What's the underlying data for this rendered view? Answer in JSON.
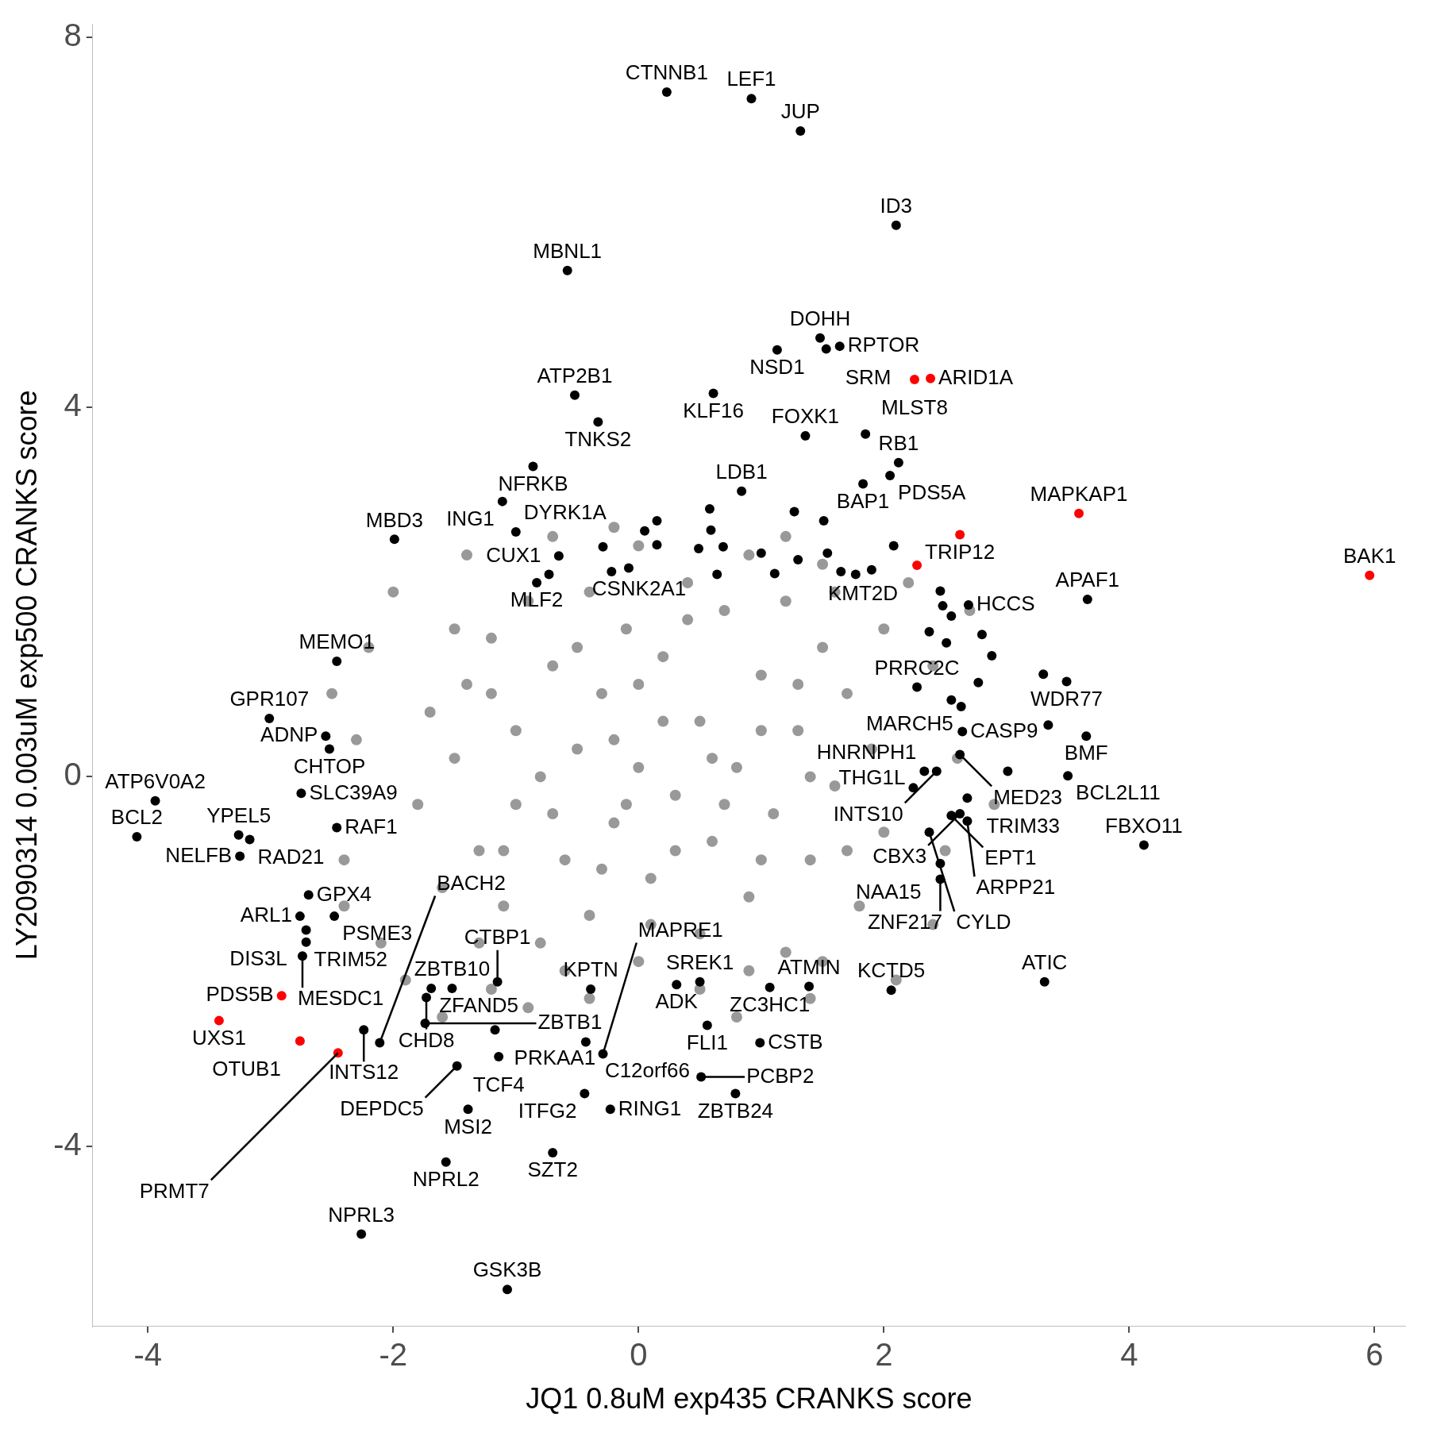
{
  "chart_data": {
    "type": "scatter",
    "xlabel": "JQ1 0.8uM exp435 CRANKS score",
    "ylabel": "LY2090314 0.003uM exp500 CRANKS score",
    "xlim": [
      -4.45,
      6.25
    ],
    "ylim": [
      -5.95,
      8.15
    ],
    "xticks": [
      -4,
      -2,
      0,
      2,
      4,
      6
    ],
    "yticks": [
      -4,
      0,
      4,
      8
    ],
    "grid": false,
    "legend": false,
    "marker": "circle",
    "series": [
      {
        "color": "#999999",
        "x": [
          -1.5,
          -1.4,
          -1.3,
          -1.2,
          -1.1,
          -1.0,
          -1.0,
          -0.9,
          -0.8,
          -0.7,
          -0.6,
          -0.5,
          -0.4,
          -0.4,
          -0.3,
          -0.2,
          -0.1,
          0,
          0,
          0.1,
          0.2,
          0.3,
          0.4,
          0.5,
          0.5,
          0.6,
          0.7,
          0.8,
          0.9,
          1.0,
          1.1,
          1.2,
          1.2,
          1.3,
          1.4,
          1.5,
          1.6,
          1.7,
          1.8,
          1.9,
          2.0,
          2.0,
          1.6,
          -1.6,
          -1.7,
          -1.8,
          -1.5,
          -1.3,
          0.9,
          -0.6,
          1.5,
          -2.3,
          -2.4,
          -2.2,
          -2.1,
          -2.0,
          -1.4,
          -0.7,
          0.0,
          0.9,
          1.5,
          2.2,
          2.4,
          2.6,
          2.5,
          2.4,
          2.1,
          1.4,
          0.5,
          -0.4,
          -1.2,
          -1.9,
          -2.4,
          -2.5,
          2.7,
          2.9,
          -1.6,
          -0.9,
          0.8,
          -0.2,
          1.2,
          -0.8,
          -0.3,
          0.2,
          0.7,
          1.0,
          -0.5,
          0.4,
          -1.1,
          1.3,
          0.1,
          -0.2,
          0.6,
          -1.2,
          1.7,
          -0.1,
          0.3,
          1.0,
          -0.7,
          0.0,
          1.4
        ],
        "values": [
          0.2,
          1.0,
          -0.8,
          1.5,
          -1.4,
          0.5,
          -0.3,
          1.9,
          -1.8,
          1.2,
          -0.9,
          0.3,
          2.0,
          -1.5,
          0.9,
          -0.5,
          1.6,
          -2.0,
          0.1,
          -1.1,
          1.3,
          -0.2,
          2.1,
          -1.7,
          0.6,
          -0.7,
          1.8,
          0.1,
          -1.3,
          1.1,
          -0.4,
          1.9,
          -1.9,
          0.5,
          -0.9,
          1.4,
          -0.1,
          0.9,
          -1.4,
          0.3,
          -0.6,
          1.6,
          2.0,
          -1.2,
          0.7,
          -0.3,
          1.6,
          -1.8,
          -2.1,
          -2.1,
          -2.0,
          0.4,
          -0.9,
          1.4,
          -1.8,
          2.0,
          2.4,
          2.6,
          2.5,
          2.4,
          2.3,
          2.1,
          1.2,
          0.2,
          -0.8,
          -1.6,
          -2.2,
          -2.4,
          -2.3,
          -2.4,
          -2.3,
          -2.2,
          -1.4,
          0.9,
          1.8,
          -0.3,
          -2.6,
          -2.5,
          -2.6,
          2.7,
          2.6,
          0.0,
          -1.0,
          0.6,
          -0.3,
          -0.9,
          1.4,
          1.7,
          -0.8,
          1.0,
          -1.6,
          0.4,
          0.2,
          0.9,
          -0.8,
          -0.3,
          -0.8,
          0.5,
          -0.4,
          1.0,
          0.0
        ]
      },
      {
        "color": "#000000",
        "x": [
          0.23,
          0.92,
          1.32,
          2.1,
          -0.58,
          1.48,
          1.13,
          1.64,
          1.53,
          0.61,
          -0.52,
          -0.33,
          1.36,
          2.12,
          2.05,
          1.83,
          -0.86,
          -1.11,
          -1.0,
          -0.73,
          -0.83,
          -0.22,
          0.84,
          -1.99,
          2.69,
          3.66,
          -2.46,
          3.49,
          -3.01,
          2.27,
          2.63,
          -2.55,
          2.64,
          2.33,
          2.62,
          3.65,
          -2.52,
          -3.26,
          -3.94,
          -2.75,
          2.43,
          3.5,
          -3.17,
          -2.46,
          2.68,
          2.24,
          2.55,
          2.62,
          2.68,
          4.12,
          2.37,
          -4.09,
          -3.25,
          -2.69,
          -2.48,
          -2.76,
          2.46,
          2.46,
          -0.39,
          -1.52,
          -1.69,
          0.5,
          -2.71,
          -2.71,
          -2.74,
          -1.15,
          0.31,
          1.07,
          1.39,
          2.06,
          3.31,
          -2.24,
          0.56,
          -1.73,
          -2.11,
          -1.17,
          -1.74,
          -0.43,
          -0.29,
          -1.14,
          -1.48,
          0.99,
          0.79,
          0.51,
          -0.44,
          -0.23,
          -1.39,
          -1.57,
          -0.7,
          -2.26,
          -1.07,
          1.85,
          0.15,
          0.58,
          1.27,
          1.51,
          2.08,
          0.05,
          -0.29,
          0.15,
          0.59,
          0.49,
          0.69,
          1.0,
          1.3,
          1.54,
          1.65,
          1.77,
          1.9,
          1.11,
          0.64,
          -0.08,
          -0.65,
          2.46,
          2.48,
          2.55,
          2.37,
          2.8,
          2.88,
          2.51,
          3.3,
          2.77,
          2.55,
          3.01,
          3.34
        ],
        "values": [
          7.41,
          7.34,
          6.99,
          5.97,
          5.48,
          4.75,
          4.62,
          4.66,
          4.63,
          4.15,
          4.13,
          3.84,
          3.69,
          3.4,
          3.26,
          3.17,
          3.36,
          2.98,
          2.65,
          2.19,
          2.1,
          2.22,
          3.09,
          2.57,
          1.86,
          1.92,
          1.25,
          1.03,
          0.63,
          0.97,
          0.76,
          0.44,
          0.49,
          0.06,
          0.24,
          0.44,
          0.3,
          -0.63,
          -0.26,
          -0.18,
          0.06,
          0.01,
          -0.68,
          -0.55,
          -0.23,
          -0.12,
          -0.42,
          -0.4,
          -0.48,
          -0.74,
          -0.6,
          -0.65,
          -0.86,
          -1.28,
          -1.51,
          -1.51,
          -0.94,
          -1.11,
          -2.3,
          -2.29,
          -2.29,
          -2.22,
          -1.66,
          -1.79,
          -1.94,
          -2.22,
          -2.25,
          -2.28,
          -2.27,
          -2.31,
          -2.22,
          -2.74,
          -2.69,
          -2.39,
          -2.88,
          -2.74,
          -2.67,
          -2.87,
          -3.0,
          -3.03,
          -3.13,
          -2.88,
          -3.43,
          -3.25,
          -3.43,
          -3.6,
          -3.6,
          -4.17,
          -4.07,
          -4.95,
          -5.55,
          3.71,
          2.77,
          2.9,
          2.87,
          2.77,
          2.5,
          2.66,
          2.49,
          2.51,
          2.67,
          2.47,
          2.49,
          2.42,
          2.35,
          2.42,
          2.22,
          2.19,
          2.24,
          2.2,
          2.19,
          2.26,
          2.39,
          2.01,
          1.85,
          1.74,
          1.57,
          1.54,
          1.31,
          1.45,
          1.11,
          1.02,
          0.83,
          0.06,
          0.56
        ]
      },
      {
        "color": "#ff0000",
        "x": [
          2.38,
          2.25,
          2.62,
          3.59,
          2.27,
          5.96,
          -2.91,
          -3.42,
          -2.76,
          -2.45
        ],
        "values": [
          4.31,
          4.3,
          2.62,
          2.85,
          2.29,
          2.18,
          -2.37,
          -2.64,
          -2.86,
          -2.99
        ]
      }
    ],
    "annotations": [
      {
        "text": "CTNNB1",
        "x": 0.23,
        "y": 7.41
      },
      {
        "text": "LEF1",
        "x": 0.92,
        "y": 7.34
      },
      {
        "text": "JUP",
        "x": 1.32,
        "y": 6.99
      },
      {
        "text": "ID3",
        "x": 2.1,
        "y": 5.97
      },
      {
        "text": "MBNL1",
        "x": -0.58,
        "y": 5.48
      },
      {
        "text": "DOHH",
        "x": 1.48,
        "y": 4.75
      },
      {
        "text": "NSD1",
        "x": 1.13,
        "y": 4.62
      },
      {
        "text": "RPTOR",
        "x": 1.64,
        "y": 4.66
      },
      {
        "text": "SRM",
        "x": 1.53,
        "y": 4.63
      },
      {
        "text": "ARID1A",
        "x": 2.38,
        "y": 4.31
      },
      {
        "text": "MLST8",
        "x": 2.25,
        "y": 4.3
      },
      {
        "text": "KLF16",
        "x": 0.61,
        "y": 4.15
      },
      {
        "text": "ATP2B1",
        "x": -0.52,
        "y": 4.13
      },
      {
        "text": "TNKS2",
        "x": -0.33,
        "y": 3.84
      },
      {
        "text": "FOXK1",
        "x": 1.36,
        "y": 3.69
      },
      {
        "text": "RB1",
        "x": 2.12,
        "y": 3.4
      },
      {
        "text": "PDS5A",
        "x": 2.05,
        "y": 3.26
      },
      {
        "text": "BAP1",
        "x": 1.83,
        "y": 3.17
      },
      {
        "text": "NFRKB",
        "x": -0.86,
        "y": 3.36
      },
      {
        "text": "ING1",
        "x": -1.11,
        "y": 2.98
      },
      {
        "text": "DYRK1A",
        "x": -1.0,
        "y": 2.65
      },
      {
        "text": "CUX1",
        "x": -0.73,
        "y": 2.19
      },
      {
        "text": "MLF2",
        "x": -0.83,
        "y": 2.1
      },
      {
        "text": "CSNK2A1",
        "x": -0.22,
        "y": 2.22
      },
      {
        "text": "LDB1",
        "x": 0.84,
        "y": 3.09
      },
      {
        "text": "MBD3",
        "x": -1.99,
        "y": 2.57
      },
      {
        "text": "TRIP12",
        "x": 2.62,
        "y": 2.62
      },
      {
        "text": "MAPKAP1",
        "x": 3.59,
        "y": 2.85
      },
      {
        "text": "KMT2D",
        "x": 2.27,
        "y": 2.29
      },
      {
        "text": "BAK1",
        "x": 5.96,
        "y": 2.18
      },
      {
        "text": "HCCS",
        "x": 2.69,
        "y": 1.86
      },
      {
        "text": "APAF1",
        "x": 3.66,
        "y": 1.92
      },
      {
        "text": "MEMO1",
        "x": -2.46,
        "y": 1.25
      },
      {
        "text": "WDR77",
        "x": 3.49,
        "y": 1.03
      },
      {
        "text": "GPR107",
        "x": -3.01,
        "y": 0.63
      },
      {
        "text": "PRRC2C",
        "x": 2.27,
        "y": 0.97
      },
      {
        "text": "MARCH5",
        "x": 2.63,
        "y": 0.76
      },
      {
        "text": "ADNP",
        "x": -2.55,
        "y": 0.44
      },
      {
        "text": "CASP9",
        "x": 2.64,
        "y": 0.49
      },
      {
        "text": "HNRNPH1",
        "x": 2.33,
        "y": 0.06
      },
      {
        "text": "MED23",
        "x": 2.62,
        "y": 0.24
      },
      {
        "text": "BMF",
        "x": 3.65,
        "y": 0.44
      },
      {
        "text": "CHTOP",
        "x": -2.52,
        "y": 0.3
      },
      {
        "text": "YPEL5",
        "x": -3.26,
        "y": -0.63
      },
      {
        "text": "ATP6V0A2",
        "x": -3.94,
        "y": -0.26
      },
      {
        "text": "SLC39A9",
        "x": -2.75,
        "y": -0.18
      },
      {
        "text": "INTS10",
        "x": 2.43,
        "y": 0.06
      },
      {
        "text": "BCL2L11",
        "x": 3.5,
        "y": 0.01
      },
      {
        "text": "RAD21",
        "x": -3.17,
        "y": -0.68
      },
      {
        "text": "RAF1",
        "x": -2.46,
        "y": -0.55
      },
      {
        "text": "TRIM33",
        "x": 2.68,
        "y": -0.23
      },
      {
        "text": "THG1L",
        "x": 2.24,
        "y": -0.12
      },
      {
        "text": "EPT1",
        "x": 2.55,
        "y": -0.42
      },
      {
        "text": "CBX3",
        "x": 2.62,
        "y": -0.4
      },
      {
        "text": "ARPP21",
        "x": 2.68,
        "y": -0.48
      },
      {
        "text": "FBXO11",
        "x": 4.12,
        "y": -0.74
      },
      {
        "text": "CYLD",
        "x": 2.37,
        "y": -0.6
      },
      {
        "text": "BCL2",
        "x": -4.09,
        "y": -0.65
      },
      {
        "text": "NELFB",
        "x": -3.25,
        "y": -0.86
      },
      {
        "text": "GPX4",
        "x": -2.69,
        "y": -1.28
      },
      {
        "text": "PSME3",
        "x": -2.48,
        "y": -1.51
      },
      {
        "text": "ARL1",
        "x": -2.76,
        "y": -1.51
      },
      {
        "text": "NAA15",
        "x": 2.46,
        "y": -0.94
      },
      {
        "text": "ZNF217",
        "x": 2.46,
        "y": -1.11
      },
      {
        "text": "KPTN",
        "x": -0.39,
        "y": -2.3
      },
      {
        "text": "ZBTB10",
        "x": -1.52,
        "y": -2.29
      },
      {
        "text": "ZFAND5",
        "x": -1.69,
        "y": -2.29
      },
      {
        "text": "SREK1",
        "x": 0.5,
        "y": -2.22
      },
      {
        "text": "DIS3L",
        "x": -2.71,
        "y": -1.66
      },
      {
        "text": "TRIM52",
        "x": -2.71,
        "y": -1.79
      },
      {
        "text": "MESDC1",
        "x": -2.74,
        "y": -1.94
      },
      {
        "text": "CTBP1",
        "x": -1.15,
        "y": -2.22
      },
      {
        "text": "ADK",
        "x": 0.31,
        "y": -2.25
      },
      {
        "text": "ZC3HC1",
        "x": 1.07,
        "y": -2.28
      },
      {
        "text": "ATMIN",
        "x": 1.39,
        "y": -2.27
      },
      {
        "text": "KCTD5",
        "x": 2.06,
        "y": -2.31
      },
      {
        "text": "ATIC",
        "x": 3.31,
        "y": -2.22
      },
      {
        "text": "PDS5B",
        "x": -2.91,
        "y": -2.37
      },
      {
        "text": "INTS12",
        "x": -2.24,
        "y": -2.74
      },
      {
        "text": "FLI1",
        "x": 0.56,
        "y": -2.69
      },
      {
        "text": "UXS1",
        "x": -3.42,
        "y": -2.64
      },
      {
        "text": "OTUB1",
        "x": -2.76,
        "y": -2.86
      },
      {
        "text": "PRMT7",
        "x": -2.45,
        "y": -2.99
      },
      {
        "text": "CHD8",
        "x": -1.73,
        "y": -2.39
      },
      {
        "text": "BACH2",
        "x": -2.11,
        "y": -2.88
      },
      {
        "text": "PRKAA1",
        "x": -1.17,
        "y": -2.74
      },
      {
        "text": "ZBTB1",
        "x": -1.74,
        "y": -2.67
      },
      {
        "text": "C12orf66",
        "x": -0.43,
        "y": -2.87
      },
      {
        "text": "MAPRE1",
        "x": -0.29,
        "y": -3.0
      },
      {
        "text": "TCF4",
        "x": -1.14,
        "y": -3.03
      },
      {
        "text": "DEPDC5",
        "x": -1.48,
        "y": -3.13
      },
      {
        "text": "CSTB",
        "x": 0.99,
        "y": -2.88
      },
      {
        "text": "ZBTB24",
        "x": 0.79,
        "y": -3.43
      },
      {
        "text": "PCBP2",
        "x": 0.51,
        "y": -3.25
      },
      {
        "text": "ITFG2",
        "x": -0.44,
        "y": -3.43
      },
      {
        "text": "RING1",
        "x": -0.23,
        "y": -3.6
      },
      {
        "text": "MSI2",
        "x": -1.39,
        "y": -3.6
      },
      {
        "text": "NPRL2",
        "x": -1.57,
        "y": -4.17
      },
      {
        "text": "SZT2",
        "x": -0.7,
        "y": -4.07
      },
      {
        "text": "NPRL3",
        "x": -2.26,
        "y": -4.95
      },
      {
        "text": "GSK3B",
        "x": -1.07,
        "y": -5.55
      }
    ]
  }
}
